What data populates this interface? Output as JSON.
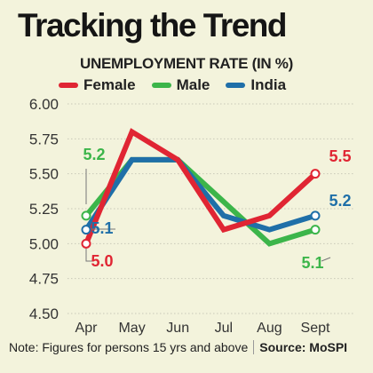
{
  "title": "Tracking the Trend",
  "footer": {
    "note": "Note: Figures for persons 15 yrs and above",
    "source": "Source: MoSPI"
  },
  "colors": {
    "background": "#f3f3dc",
    "female": "#e02533",
    "male": "#3cb54a",
    "india": "#1f6fa8",
    "grid": "#c9c9b8"
  },
  "chart_data": {
    "type": "line",
    "title": "UNEMPLOYMENT RATE (IN %)",
    "categories": [
      "Apr",
      "May",
      "Jun",
      "Jul",
      "Aug",
      "Sept"
    ],
    "ylim": [
      4.5,
      6.0
    ],
    "yticks": [
      "6.00",
      "5.75",
      "5.50",
      "5.25",
      "5.00",
      "4.75",
      "4.50"
    ],
    "grid": true,
    "legend_position": "top",
    "series": [
      {
        "name": "Female",
        "color": "#e02533",
        "values": [
          5.0,
          5.8,
          5.6,
          5.1,
          5.2,
          5.5
        ]
      },
      {
        "name": "Male",
        "color": "#3cb54a",
        "values": [
          5.2,
          5.6,
          5.6,
          5.3,
          5.0,
          5.1
        ]
      },
      {
        "name": "India",
        "color": "#1f6fa8",
        "values": [
          5.1,
          5.6,
          5.6,
          5.2,
          5.1,
          5.2
        ]
      }
    ],
    "data_labels": [
      {
        "text": "5.2",
        "series": "Male",
        "category": "Apr",
        "color": "#3cb54a"
      },
      {
        "text": "5.1",
        "series": "India",
        "category": "Apr",
        "color": "#1f6fa8"
      },
      {
        "text": "5.0",
        "series": "Female",
        "category": "Apr",
        "color": "#e02533"
      },
      {
        "text": "5.5",
        "series": "Female",
        "category": "Sept",
        "color": "#e02533"
      },
      {
        "text": "5.2",
        "series": "India",
        "category": "Sept",
        "color": "#1f6fa8"
      },
      {
        "text": "5.1",
        "series": "Male",
        "category": "Sept",
        "color": "#3cb54a"
      }
    ]
  }
}
